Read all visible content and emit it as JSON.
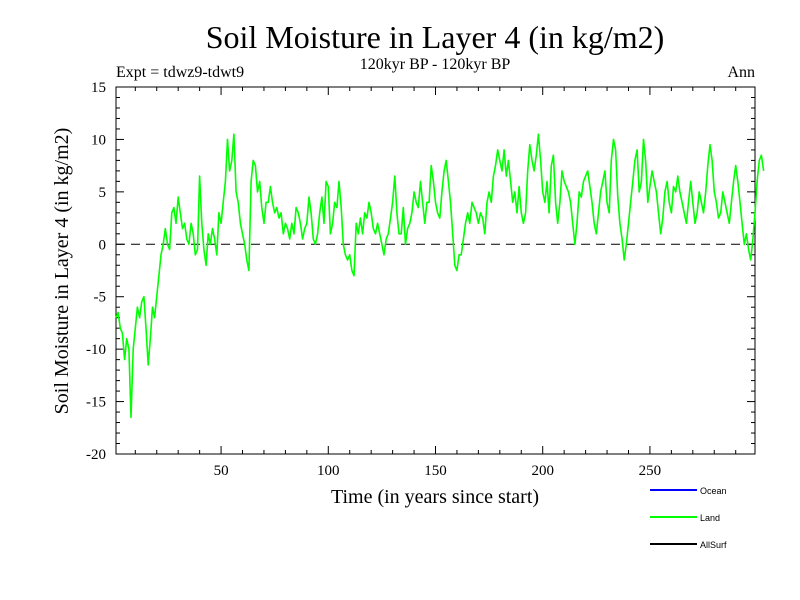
{
  "chart_data": {
    "type": "line",
    "title": "Soil Moisture in Layer 4 (in kg/m2)",
    "subtitle": "120kyr BP - 120kyr BP",
    "experiment_label": "Expt = tdwz9-tdwt9",
    "period_label": "Ann",
    "xlabel": "Time (in years since start)",
    "ylabel": "Soil Moisture in Layer 4 (in kg/m2)",
    "xlim": [
      1,
      299
    ],
    "ylim": [
      -20,
      15
    ],
    "x_ticks": [
      50,
      100,
      150,
      200,
      250
    ],
    "y_ticks": [
      -20,
      -15,
      -10,
      -5,
      0,
      5,
      10,
      15
    ],
    "y_tick_labels": [
      "-20",
      "-15",
      "-10",
      "-5",
      "0",
      "5",
      "10",
      "15"
    ],
    "zero_line": true,
    "grid": false,
    "legend_position": "bottom-right",
    "legend": [
      {
        "name": "Ocean",
        "color": "#0000ff"
      },
      {
        "name": "Land",
        "color": "#00ff00"
      },
      {
        "name": "AllSurf",
        "color": "#000000"
      }
    ],
    "series": [
      {
        "name": "Land",
        "color": "#00ff00",
        "x_start": 1,
        "x_step": 1,
        "values": [
          -7,
          -6.5,
          -8,
          -8.5,
          -11,
          -9,
          -10,
          -16.5,
          -10,
          -8,
          -6,
          -7,
          -5.5,
          -5,
          -8,
          -11.5,
          -9,
          -6,
          -7,
          -5,
          -3,
          -1,
          0,
          1.5,
          0,
          -0.5,
          3,
          3.5,
          2,
          4.5,
          3,
          1.5,
          2,
          0.5,
          0,
          2,
          1,
          -1,
          -0.5,
          6.5,
          2,
          -0.5,
          -2,
          1,
          0,
          1.5,
          0.5,
          -1,
          3,
          2,
          4,
          6,
          10,
          7,
          8,
          10.5,
          5,
          4,
          2,
          1,
          0,
          -1.5,
          -2.5,
          6,
          8,
          7.5,
          5,
          6,
          3.5,
          2,
          4,
          4,
          5.5,
          4,
          3,
          3.5,
          2.5,
          3,
          1,
          2,
          1.5,
          0.5,
          2,
          1,
          3.5,
          3,
          2,
          0.5,
          1.5,
          2,
          4.5,
          3,
          0.5,
          0,
          1,
          3,
          4.5,
          2,
          6,
          5.5,
          1,
          2,
          4,
          3.5,
          6,
          3.5,
          0,
          -1,
          -1.5,
          -1,
          -2.5,
          -3,
          2,
          1,
          2.5,
          1,
          3,
          2.5,
          4,
          3,
          1.5,
          1,
          2,
          1,
          0,
          -1,
          0.5,
          1,
          2.5,
          4,
          6.5,
          3,
          1,
          1,
          3.5,
          0,
          1.5,
          2,
          3,
          5,
          4,
          3.5,
          6,
          4,
          2,
          4,
          4,
          7.5,
          6,
          4,
          3,
          2.5,
          5,
          7,
          8,
          6,
          4,
          1,
          -2,
          -2.5,
          -1,
          -1,
          0.5,
          2,
          3,
          2,
          4,
          3.5,
          3,
          2,
          3,
          2.5,
          1,
          4,
          5,
          4,
          6.5,
          7.5,
          9,
          8,
          7,
          9,
          6.5,
          8,
          6,
          4,
          5,
          3,
          5.5,
          3,
          2,
          3,
          7,
          9.5,
          8,
          7,
          8.5,
          10.5,
          8,
          5,
          4,
          6,
          3,
          7.5,
          8.5,
          4,
          2,
          4,
          7,
          6,
          5.5,
          5,
          4,
          2,
          0,
          2,
          5,
          4.5,
          6,
          6.5,
          7,
          5.5,
          4,
          2,
          1,
          3,
          5,
          6,
          7,
          4,
          3,
          8,
          10,
          9,
          4.5,
          2,
          0.5,
          -1.5,
          0,
          2,
          4,
          6,
          8,
          9,
          5,
          6,
          10,
          8,
          4,
          5.5,
          7,
          6,
          5,
          3,
          1,
          2.5,
          5,
          6,
          4,
          3,
          5.5,
          5,
          6.5,
          5,
          4,
          3,
          2,
          4,
          6,
          4,
          2,
          3,
          5,
          4,
          3,
          5,
          7.5,
          9.5,
          8,
          5,
          4,
          2.5,
          3,
          5,
          4,
          3,
          2,
          4,
          6,
          7.5,
          6,
          4,
          2,
          0,
          1,
          -0.5,
          -1.5,
          0.5,
          3,
          6,
          8,
          8.5,
          7
        ]
      },
      {
        "name": "Ocean",
        "color": "#0000ff",
        "values": []
      },
      {
        "name": "AllSurf",
        "color": "#000000",
        "values": []
      }
    ]
  }
}
